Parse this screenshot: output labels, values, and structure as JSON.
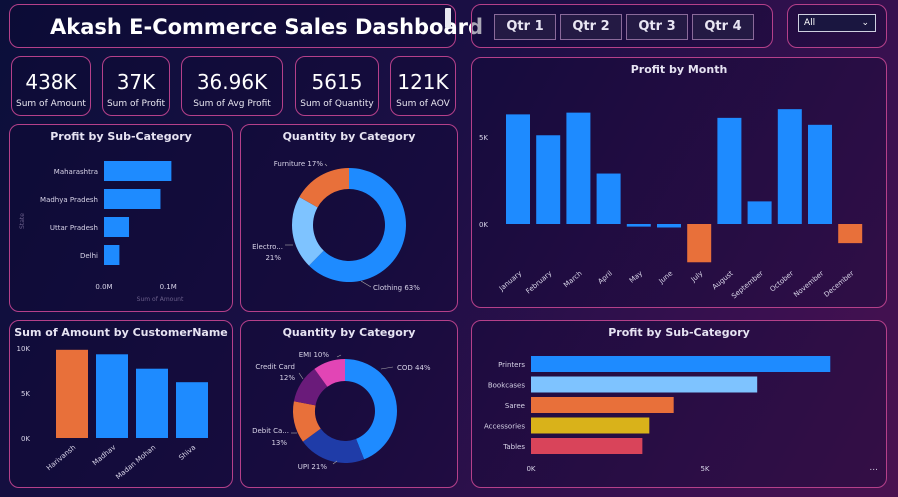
{
  "header": {
    "title": "Akash E-Commerce Sales Dashboard"
  },
  "quarters": [
    "Qtr 1",
    "Qtr 2",
    "Qtr 3",
    "Qtr 4"
  ],
  "filter": {
    "selected": "All"
  },
  "kpis": [
    {
      "value": "438K",
      "label": "Sum of Amount"
    },
    {
      "value": "37K",
      "label": "Sum of Profit"
    },
    {
      "value": "36.96K",
      "label": "Sum of Avg Profit"
    },
    {
      "value": "5615",
      "label": "Sum of Quantity"
    },
    {
      "value": "121K",
      "label": "Sum of AOV"
    }
  ],
  "colors": {
    "blue": "#1e8bff",
    "orange": "#e8703a",
    "light_blue": "#7ec3ff",
    "navy": "#1f3ca8",
    "purple": "#6a1b7a",
    "pink": "#e245b5",
    "gold": "#d9b21a",
    "red": "#d9445a",
    "border": "#b5408a"
  },
  "chart_data": [
    {
      "type": "bar",
      "title": "Profit by Sub-Category",
      "orientation": "horizontal",
      "categories": [
        "Maharashtra",
        "Madhya Pradesh",
        "Uttar Pradesh",
        "Delhi"
      ],
      "values": [
        0.105,
        0.088,
        0.039,
        0.024
      ],
      "xlabel": "Sum of Amount",
      "ylabel": "State",
      "x_ticks": [
        "0.0M",
        "0.1M"
      ],
      "xlim": [
        0,
        0.12
      ]
    },
    {
      "type": "pie",
      "title": "Quantity by Category",
      "donut": true,
      "labels": [
        "Clothing 63%",
        "Electro... 21%",
        "Furniture 17%"
      ],
      "values": [
        63,
        21,
        17
      ]
    },
    {
      "type": "bar",
      "title": "Profit by Month",
      "categories": [
        "January",
        "February",
        "March",
        "April",
        "May",
        "June",
        "July",
        "August",
        "September",
        "October",
        "November",
        "December"
      ],
      "values": [
        6300,
        5100,
        6400,
        2900,
        -150,
        -200,
        -2200,
        6100,
        1300,
        6600,
        5700,
        -1100
      ],
      "y_ticks": [
        "5K",
        "0K"
      ],
      "ylim": [
        -3000,
        8000
      ]
    },
    {
      "type": "bar",
      "title": "Sum of Amount by CustomerName",
      "categories": [
        "Harivansh",
        "Madhav",
        "Madan Mohan",
        "Shiva"
      ],
      "values": [
        9800,
        9300,
        7700,
        6200
      ],
      "y_ticks": [
        "10K",
        "5K",
        "0K"
      ],
      "ylim": [
        0,
        10000
      ]
    },
    {
      "type": "pie",
      "title": "Quantity by Category",
      "donut": true,
      "labels": [
        "COD 44%",
        "UPI 21%",
        "Debit Ca... 13%",
        "Credit Card 12%",
        "EMI 10%"
      ],
      "values": [
        44,
        21,
        13,
        12,
        10
      ]
    },
    {
      "type": "bar",
      "title": "Profit by Sub-Category",
      "orientation": "horizontal",
      "categories": [
        "Printers",
        "Bookcases",
        "Saree",
        "Accessories",
        "Tables"
      ],
      "values": [
        8600,
        6500,
        4100,
        3400,
        3200
      ],
      "x_ticks": [
        "0K",
        "5K"
      ],
      "xlim": [
        0,
        10000
      ]
    }
  ]
}
